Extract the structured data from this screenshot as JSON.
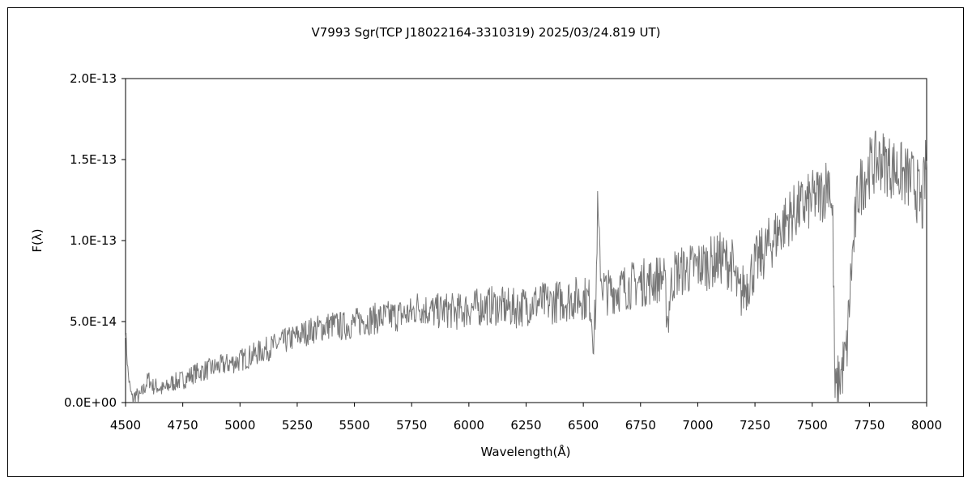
{
  "chart_data": {
    "type": "line",
    "title": "V7993 Sgr(TCP J18022164-3310319)   2025/03/24.819 UT)",
    "xlabel": "Wavelength(Å)",
    "ylabel": "F(λ)",
    "xlim": [
      4500,
      8000
    ],
    "ylim": [
      0,
      2e-13
    ],
    "x_ticks": [
      4500,
      4750,
      5000,
      5250,
      5500,
      5750,
      6000,
      6250,
      6500,
      6750,
      7000,
      7250,
      7500,
      7750,
      8000
    ],
    "x_tick_labels": [
      "4500",
      "4750",
      "5000",
      "5250",
      "5500",
      "5750",
      "6000",
      "6250",
      "6500",
      "6750",
      "7000",
      "7250",
      "7500",
      "7750",
      "8000"
    ],
    "y_ticks": [
      0,
      5e-14,
      1e-13,
      1.5e-13,
      2e-13
    ],
    "y_tick_labels": [
      "0.0E+00",
      "5.0E-14",
      "1.0E-13",
      "1.5E-13",
      "2.0E-13"
    ],
    "grid": false,
    "legend": "none",
    "line_color": "#777777",
    "series": [
      {
        "x": [
          4500,
          4510,
          4520,
          4530,
          4545,
          4560,
          4580,
          4600,
          4620,
          4640,
          4660,
          4680,
          4700,
          4725,
          4750,
          4775,
          4800,
          4850,
          4900,
          4950,
          5000,
          5050,
          5100,
          5150,
          5200,
          5250,
          5300,
          5350,
          5400,
          5450,
          5500,
          5550,
          5600,
          5650,
          5700,
          5750,
          5780,
          5800,
          5850,
          5900,
          5950,
          6000,
          6050,
          6100,
          6150,
          6200,
          6250,
          6300,
          6350,
          6400,
          6450,
          6500,
          6530,
          6545,
          6555,
          6562,
          6570,
          6580,
          6600,
          6650,
          6700,
          6750,
          6800,
          6850,
          6870,
          6880,
          6900,
          6950,
          7000,
          7050,
          7100,
          7150,
          7180,
          7200,
          7220,
          7250,
          7300,
          7350,
          7400,
          7450,
          7500,
          7550,
          7575,
          7590,
          7600,
          7610,
          7630,
          7650,
          7670,
          7700,
          7750,
          7800,
          7850,
          7900,
          7950,
          7980,
          8000
        ],
        "y": [
          4.5e-14,
          2e-14,
          8e-15,
          2e-15,
          5e-15,
          3e-15,
          8e-15,
          1.5e-14,
          1e-14,
          1e-14,
          8e-15,
          9e-15,
          1.2e-14,
          1.3e-14,
          1.4e-14,
          1.6e-14,
          1.8e-14,
          2e-14,
          2.2e-14,
          2.4e-14,
          2.6e-14,
          2.9e-14,
          3.2e-14,
          3.5e-14,
          3.8e-14,
          4.1e-14,
          4.4e-14,
          4.6e-14,
          4.8e-14,
          4.7e-14,
          4.9e-14,
          5.1e-14,
          5.2e-14,
          5.3e-14,
          5.4e-14,
          5.5e-14,
          6e-14,
          5.8e-14,
          5.6e-14,
          5.7e-14,
          5.6e-14,
          5.8e-14,
          5.9e-14,
          6e-14,
          5.9e-14,
          5.8e-14,
          6e-14,
          6.2e-14,
          6.1e-14,
          6.3e-14,
          6.4e-14,
          6.5e-14,
          6.3e-14,
          4e-14,
          6e-14,
          1.2e-13,
          9.5e-14,
          7.5e-14,
          6.8e-14,
          7e-14,
          7.2e-14,
          7.4e-14,
          7.5e-14,
          7.8e-14,
          5e-14,
          7e-14,
          8e-14,
          8.2e-14,
          8.4e-14,
          8.6e-14,
          8.9e-14,
          8.5e-14,
          6.5e-14,
          7e-14,
          7.5e-14,
          8.5e-14,
          9.5e-14,
          1.05e-13,
          1.15e-13,
          1.2e-13,
          1.25e-13,
          1.3e-13,
          1.4e-13,
          1.1e-13,
          3e-15,
          1e-14,
          2e-14,
          3e-14,
          8e-14,
          1.3e-13,
          1.45e-13,
          1.5e-13,
          1.45e-13,
          1.4e-13,
          1.35e-13,
          1.2e-13,
          1.5e-13
        ]
      }
    ]
  }
}
